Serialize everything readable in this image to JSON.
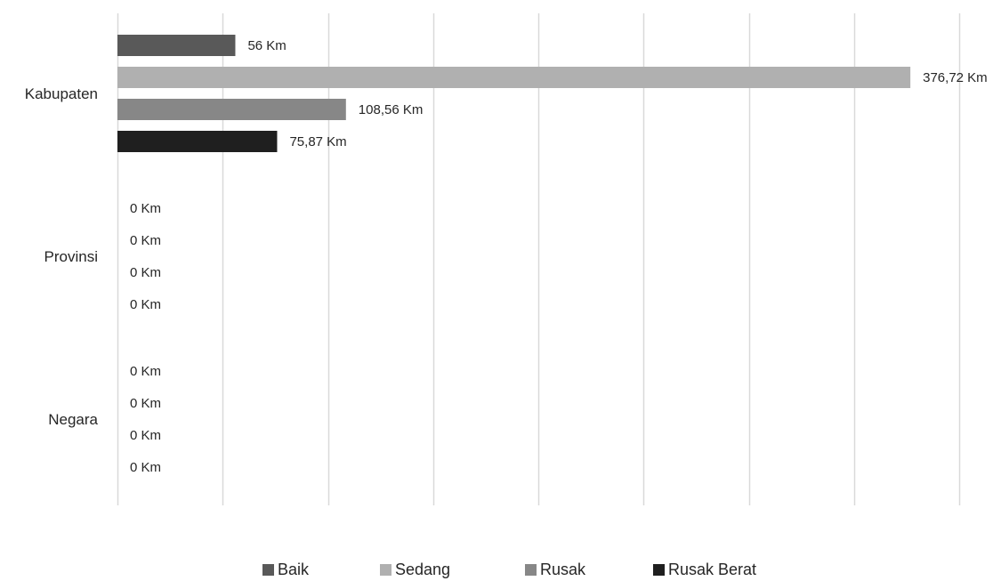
{
  "chart_data": {
    "type": "bar",
    "orientation": "horizontal",
    "categories": [
      "Kabupaten",
      "Provinsi",
      "Negara"
    ],
    "series": [
      {
        "name": "Baik",
        "color": "#595959",
        "values": [
          56,
          0,
          0
        ],
        "labels": [
          "56 Km",
          "0 Km",
          "0 Km"
        ]
      },
      {
        "name": "Sedang",
        "color": "#b0b0b0",
        "values": [
          376.72,
          0,
          0
        ],
        "labels": [
          "376,72 Km",
          "0 Km",
          "0 Km"
        ]
      },
      {
        "name": "Rusak",
        "color": "#878787",
        "values": [
          108.56,
          0,
          0
        ],
        "labels": [
          "108,56 Km",
          "0 Km",
          "0 Km"
        ]
      },
      {
        "name": "Rusak Berat",
        "color": "#1f1f1f",
        "values": [
          75.87,
          0,
          0
        ],
        "labels": [
          "75,87 Km",
          "0 Km",
          "0 Km"
        ]
      }
    ],
    "xlim": [
      0,
      400
    ],
    "grid": "vertical",
    "legend": "bottom-center"
  }
}
